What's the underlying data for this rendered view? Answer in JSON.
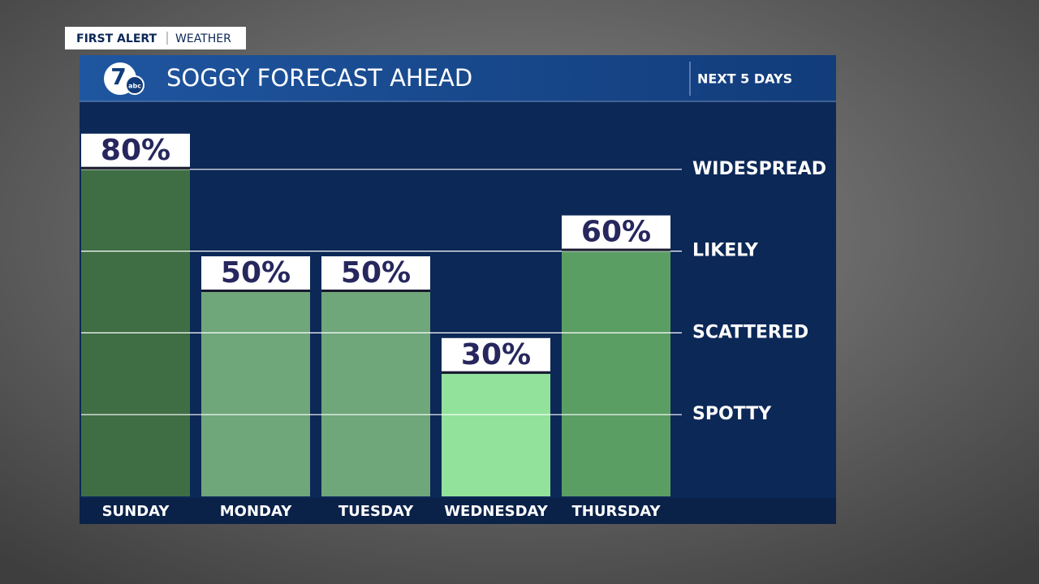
{
  "brand": {
    "first": "FIRST ALERT",
    "second": "WEATHER",
    "logo_number": "7",
    "logo_network": "abc"
  },
  "chart_data": {
    "type": "bar",
    "title": "SOGGY FORECAST AHEAD",
    "subtitle": "NEXT 5 DAYS",
    "categories": [
      "SUNDAY",
      "MONDAY",
      "TUESDAY",
      "WEDNESDAY",
      "THURSDAY"
    ],
    "values": [
      80,
      50,
      50,
      30,
      60
    ],
    "value_labels": [
      "80%",
      "50%",
      "50%",
      "30%",
      "60%"
    ],
    "colors": [
      "#3f6e44",
      "#6fa67a",
      "#6fa67a",
      "#92e29b",
      "#5b9e63"
    ],
    "ylim": [
      0,
      100
    ],
    "yticks": [
      {
        "value": 20,
        "label": "SPOTTY"
      },
      {
        "value": 40,
        "label": "SCATTERED"
      },
      {
        "value": 60,
        "label": "LIKELY"
      },
      {
        "value": 80,
        "label": "WIDESPREAD"
      }
    ],
    "grid": true
  }
}
